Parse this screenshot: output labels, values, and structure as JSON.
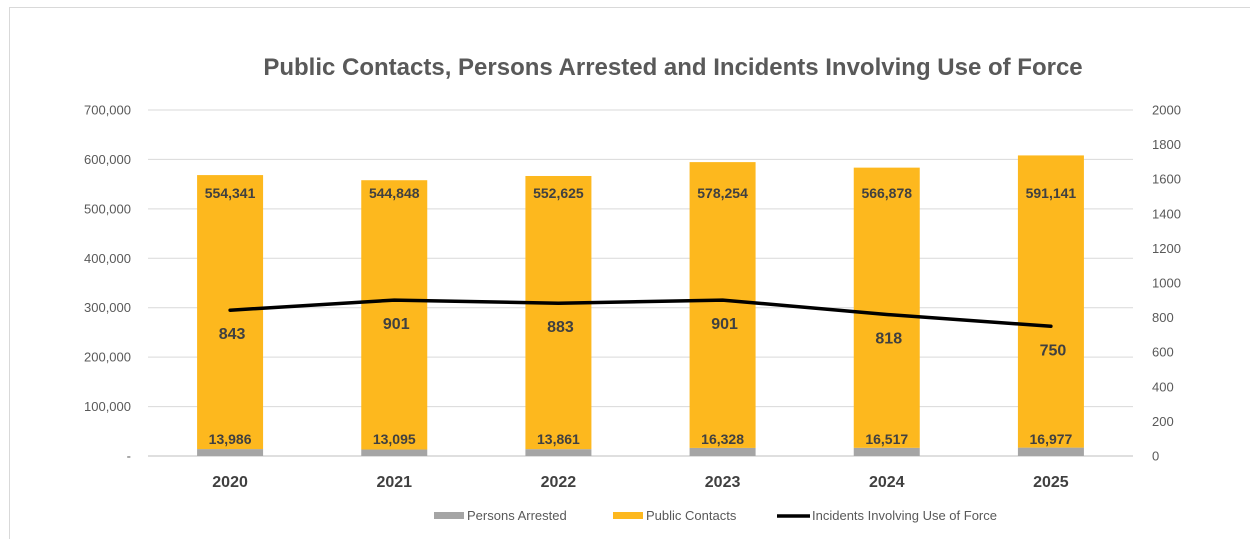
{
  "chart_data": {
    "type": "bar",
    "stacked": true,
    "title": "Public Contacts, Persons Arrested and Incidents Involving Use of Force",
    "categories": [
      "2020",
      "2021",
      "2022",
      "2023",
      "2024",
      "2025"
    ],
    "series": [
      {
        "name": "Persons Arrested",
        "type": "bar",
        "axis": "left",
        "color": "#a5a5a5",
        "values": [
          13986,
          13095,
          13861,
          16328,
          16517,
          16977
        ],
        "labels": [
          "13,986",
          "13,095",
          "13,861",
          "16,328",
          "16,517",
          "16,977"
        ]
      },
      {
        "name": "Public Contacts",
        "type": "bar",
        "axis": "left",
        "color": "#fdb81e",
        "values": [
          554341,
          544848,
          552625,
          578254,
          566878,
          591141
        ],
        "labels": [
          "554,341",
          "544,848",
          "552,625",
          "578,254",
          "566,878",
          "591,141"
        ]
      },
      {
        "name": "Incidents Involving Use of Force",
        "type": "line",
        "axis": "right",
        "color": "#000000",
        "values": [
          843,
          901,
          883,
          901,
          818,
          750
        ],
        "labels": [
          "843",
          "901",
          "883",
          "901",
          "818",
          "750"
        ]
      }
    ],
    "y_left": {
      "range": [
        0,
        700000
      ],
      "ticks": [
        0,
        100000,
        200000,
        300000,
        400000,
        500000,
        600000,
        700000
      ],
      "tick_labels": [
        "-",
        "100,000",
        "200,000",
        "300,000",
        "400,000",
        "500,000",
        "600,000",
        "700,000"
      ]
    },
    "y_right": {
      "range": [
        0,
        2000
      ],
      "ticks": [
        0,
        200,
        400,
        600,
        800,
        1000,
        1200,
        1400,
        1600,
        1800,
        2000
      ],
      "tick_labels": [
        "0",
        "200",
        "400",
        "600",
        "800",
        "1000",
        "1200",
        "1400",
        "1600",
        "1800",
        "2000"
      ]
    },
    "grid": true,
    "legend_position": "bottom"
  }
}
